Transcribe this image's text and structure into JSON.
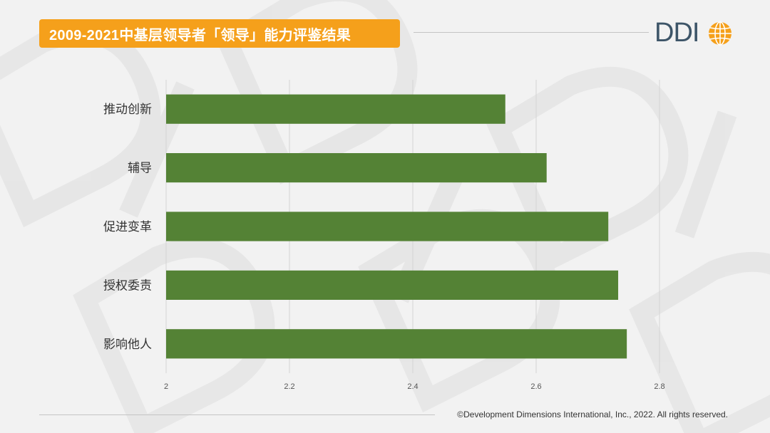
{
  "header": {
    "title": "2009-2021中基层领导者「领导」能力评鉴结果",
    "logo_text": "DDI"
  },
  "footer": {
    "copyright": "©Development Dimensions International, Inc., 2022. All rights reserved."
  },
  "colors": {
    "title_bg": "#f5a01b",
    "bar": "#548235",
    "logo_text": "#3d5568",
    "logo_globe": "#f5a01b",
    "background": "#f2f2f2"
  },
  "chart_data": {
    "type": "bar",
    "orientation": "horizontal",
    "categories": [
      "推动创新",
      "辅导",
      "促进变革",
      "授权委责",
      "影响他人"
    ],
    "values": [
      2.55,
      2.617,
      2.717,
      2.733,
      2.747
    ],
    "xlim": [
      2,
      2.8
    ],
    "xticks": [
      "2",
      "2.2",
      "2.4",
      "2.6",
      "2.8"
    ],
    "grid": "vertical"
  }
}
